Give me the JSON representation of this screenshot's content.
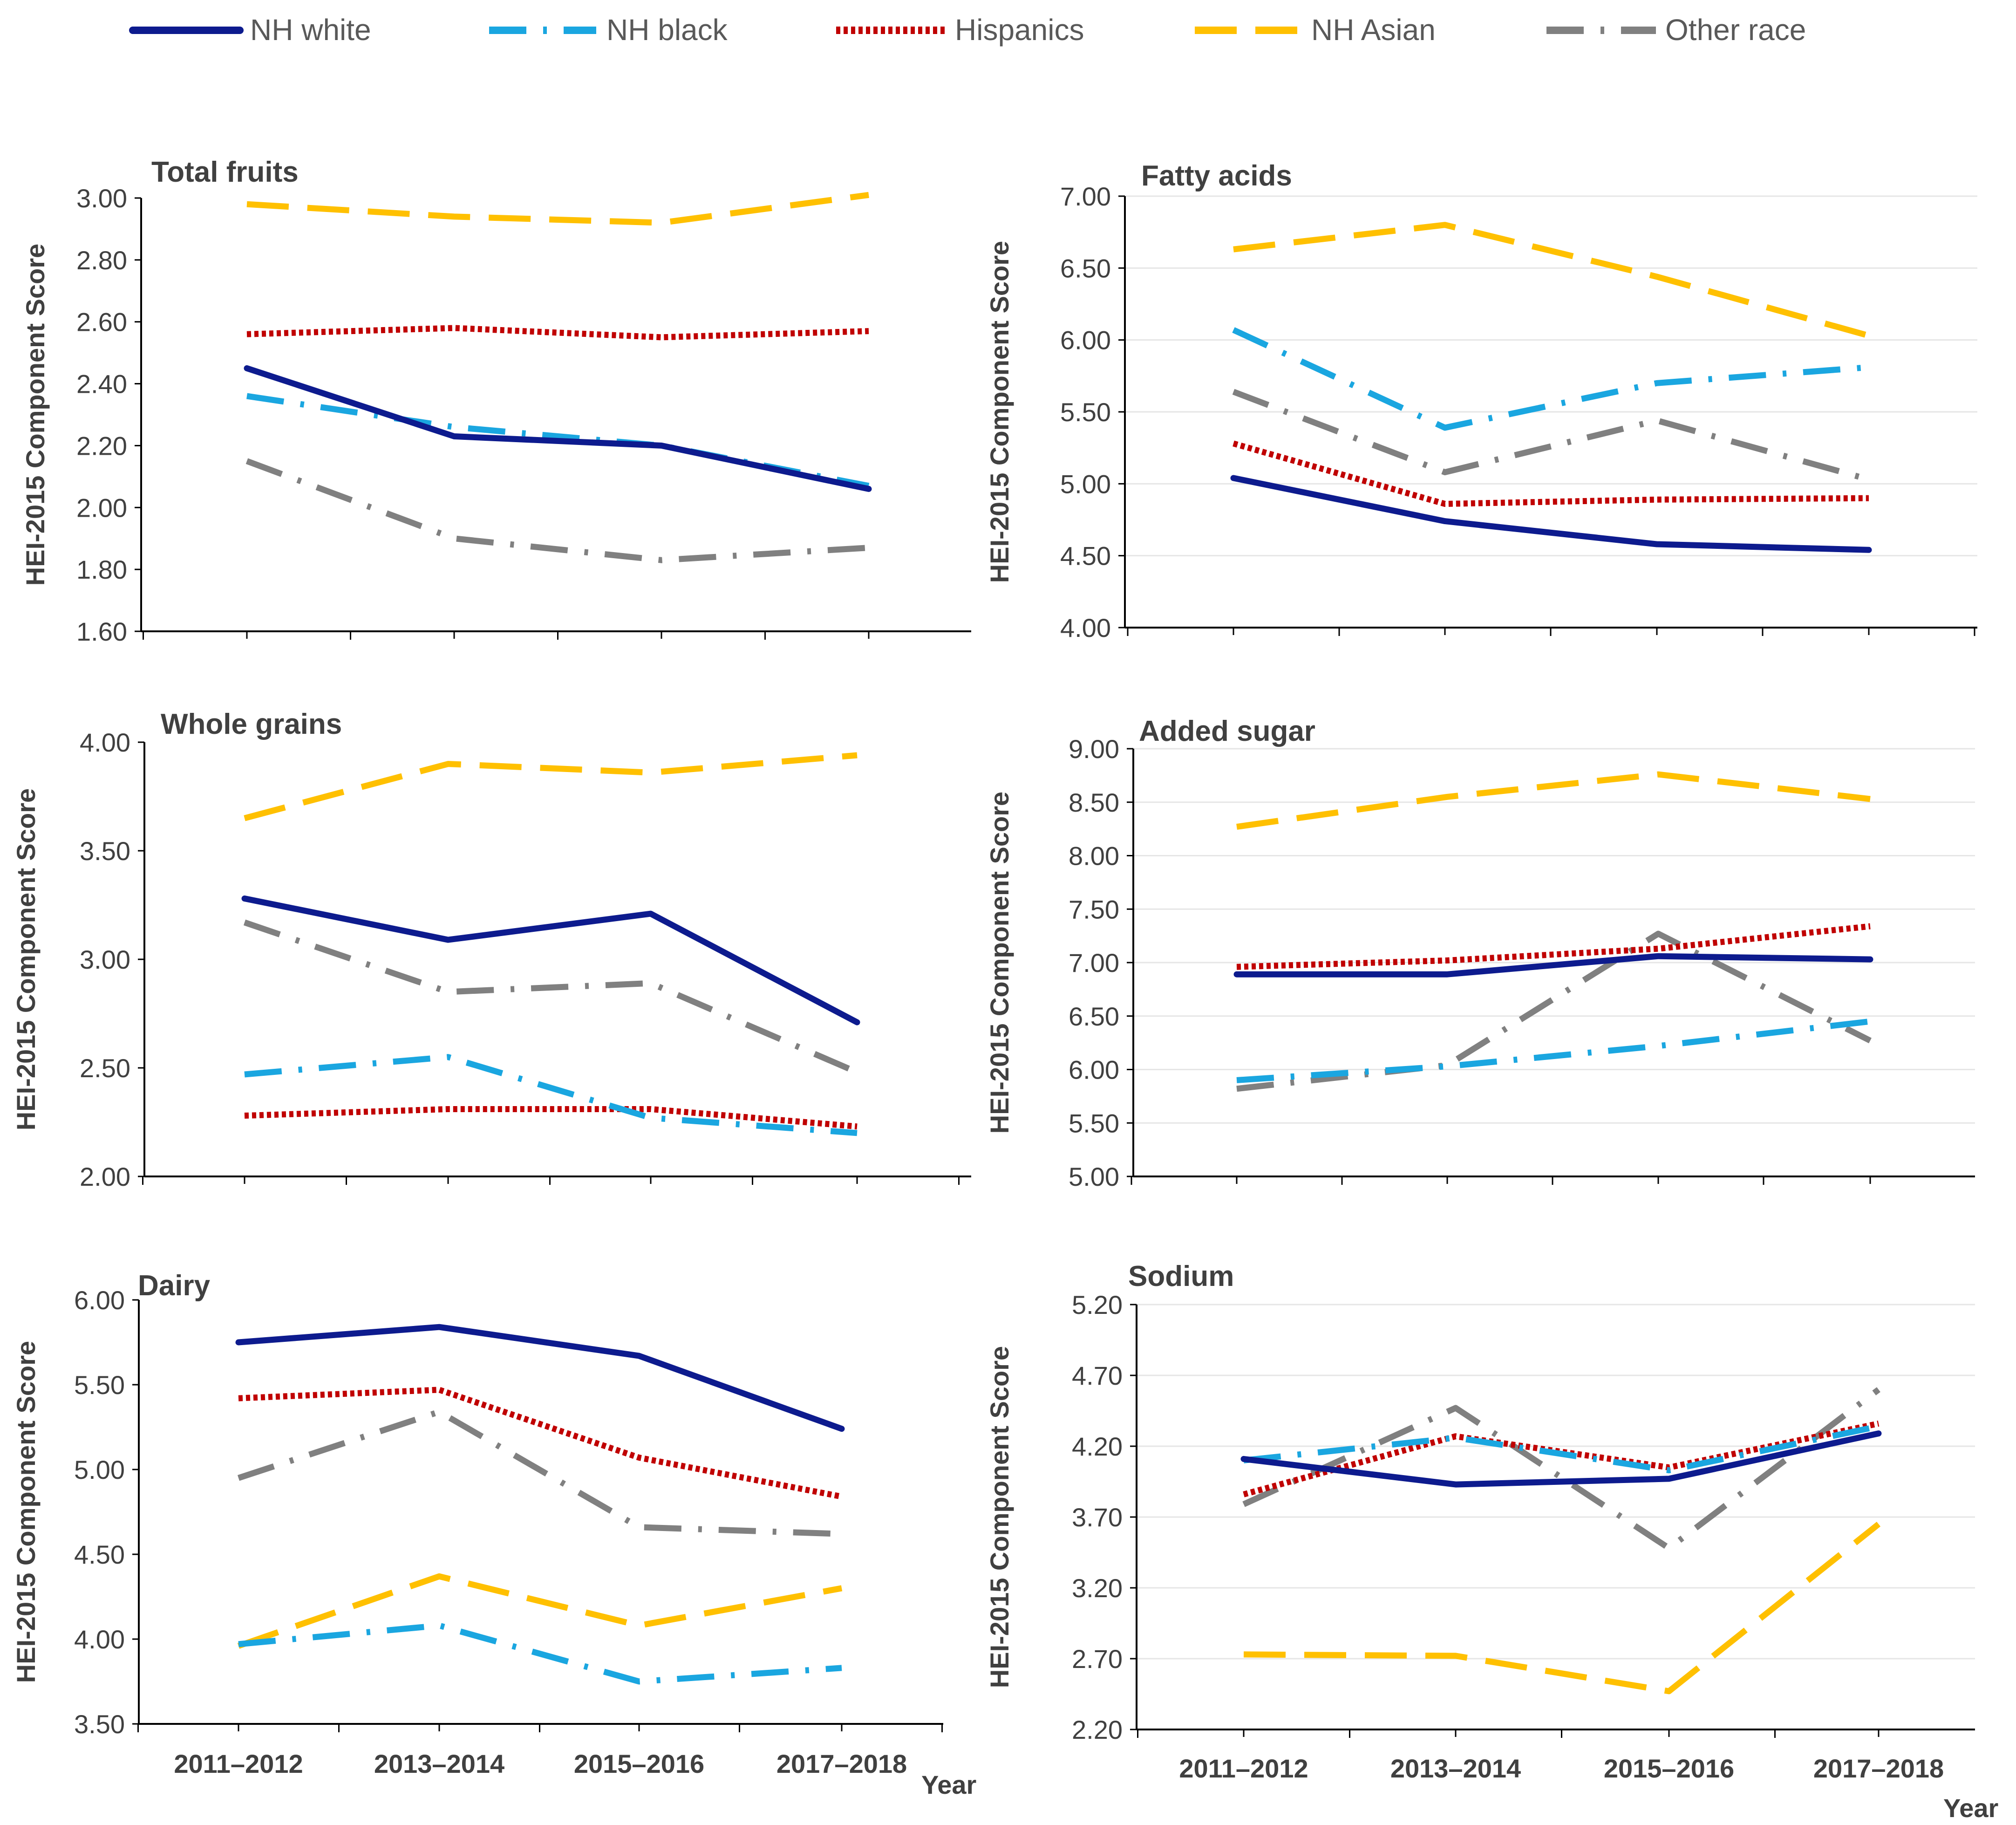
{
  "figure": {
    "categories": [
      "2011–2012",
      "2013—2014",
      "2015–2016",
      "2017–2018"
    ],
    "ylabel": "HEI-2015 Component Score",
    "xlabel": "Year",
    "legend": [
      {
        "key": "nhwhite",
        "label": "NH white",
        "color": "#0d1b8e",
        "style": "solid"
      },
      {
        "key": "nhblack",
        "label": "NH black",
        "color": "#1aa6e0",
        "style": "dashdot"
      },
      {
        "key": "hispanic",
        "label": "Hispanics",
        "color": "#c00000",
        "style": "dotted"
      },
      {
        "key": "nhasian",
        "label": "NH Asian",
        "color": "#ffc000",
        "style": "dashed"
      },
      {
        "key": "other",
        "label": "Other race",
        "color": "#808080",
        "style": "dashdot"
      }
    ]
  },
  "chart_data": [
    {
      "type": "line",
      "title": "Total fruits",
      "ylabel": "HEI-2015 Component Score",
      "ylim": [
        1.6,
        3.0
      ],
      "yticks": [
        "1.60",
        "1.80",
        "2.00",
        "2.20",
        "2.40",
        "2.60",
        "2.80",
        "3.00"
      ],
      "categories": [
        "2011–2012",
        "2013–2014",
        "2015–2016",
        "2017–2018"
      ],
      "series": [
        {
          "name": "NH white",
          "values": [
            2.45,
            2.23,
            2.2,
            2.06
          ]
        },
        {
          "name": "NH black",
          "values": [
            2.36,
            2.26,
            2.2,
            2.07
          ]
        },
        {
          "name": "Hispanics",
          "values": [
            2.56,
            2.58,
            2.55,
            2.57
          ]
        },
        {
          "name": "NH Asian",
          "values": [
            2.98,
            2.94,
            2.92,
            3.01
          ]
        },
        {
          "name": "Other race",
          "values": [
            2.15,
            1.9,
            1.83,
            1.87
          ]
        }
      ]
    },
    {
      "type": "line",
      "title": "Fatty acids",
      "ylabel": "HEI-2015 Component Score",
      "ylim": [
        4.0,
        7.0
      ],
      "yticks": [
        "4.00",
        "4.50",
        "5.00",
        "5.50",
        "6.00",
        "6.50",
        "7.00"
      ],
      "categories": [
        "2011–2012",
        "2013–2014",
        "2015–2016",
        "2017–2018"
      ],
      "series": [
        {
          "name": "NH white",
          "values": [
            5.04,
            4.74,
            4.58,
            4.54
          ]
        },
        {
          "name": "NH black",
          "values": [
            6.07,
            5.39,
            5.7,
            5.81
          ]
        },
        {
          "name": "Hispanics",
          "values": [
            5.28,
            4.86,
            4.89,
            4.9
          ]
        },
        {
          "name": "NH Asian",
          "values": [
            6.63,
            6.8,
            6.44,
            6.03
          ]
        },
        {
          "name": "Other race",
          "values": [
            5.64,
            5.08,
            5.44,
            5.03
          ]
        }
      ]
    },
    {
      "type": "line",
      "title": "Whole grains",
      "ylabel": "HEI-2015 Component Score",
      "ylim": [
        2.0,
        4.0
      ],
      "yticks": [
        "2.00",
        "2.50",
        "3.00",
        "3.50",
        "4.00"
      ],
      "categories": [
        "2011–2012",
        "2013–2014",
        "2015–2016",
        "2017–2018"
      ],
      "series": [
        {
          "name": "NH white",
          "values": [
            3.28,
            3.09,
            3.21,
            2.71
          ]
        },
        {
          "name": "NH black",
          "values": [
            2.47,
            2.55,
            2.27,
            2.2
          ]
        },
        {
          "name": "Hispanics",
          "values": [
            2.28,
            2.31,
            2.31,
            2.23
          ]
        },
        {
          "name": "NH Asian",
          "values": [
            3.65,
            3.9,
            3.86,
            3.94
          ]
        },
        {
          "name": "Other race",
          "values": [
            3.17,
            2.85,
            2.89,
            2.48
          ]
        }
      ]
    },
    {
      "type": "line",
      "title": "Added sugar",
      "ylabel": "HEI-2015 Component Score",
      "ylim": [
        5.0,
        9.0
      ],
      "yticks": [
        "5.00",
        "5.50",
        "6.00",
        "6.50",
        "7.00",
        "7.50",
        "8.00",
        "8.50",
        "9.00"
      ],
      "categories": [
        "2011–2012",
        "2013–2014",
        "2015–2016",
        "2017–2018"
      ],
      "series": [
        {
          "name": "NH white",
          "values": [
            6.89,
            6.89,
            7.06,
            7.03
          ]
        },
        {
          "name": "NH black",
          "values": [
            5.9,
            6.03,
            6.22,
            6.45
          ]
        },
        {
          "name": "Hispanics",
          "values": [
            6.96,
            7.02,
            7.13,
            7.34
          ]
        },
        {
          "name": "NH Asian",
          "values": [
            8.27,
            8.55,
            8.76,
            8.53
          ]
        },
        {
          "name": "Other race",
          "values": [
            5.82,
            6.04,
            7.27,
            6.27
          ]
        }
      ]
    },
    {
      "type": "line",
      "title": "Dairy",
      "ylabel": "HEI-2015 Component Score",
      "ylim": [
        3.5,
        6.0
      ],
      "yticks": [
        "3.50",
        "4.00",
        "4.50",
        "5.00",
        "5.50",
        "6.00"
      ],
      "categories": [
        "2011–2012",
        "2013–2014",
        "2015–2016",
        "2017–2018"
      ],
      "series": [
        {
          "name": "NH white",
          "values": [
            5.75,
            5.84,
            5.67,
            5.24
          ]
        },
        {
          "name": "NH black",
          "values": [
            3.97,
            4.08,
            3.75,
            3.83
          ]
        },
        {
          "name": "Hispanics",
          "values": [
            5.42,
            5.47,
            5.07,
            4.84
          ]
        },
        {
          "name": "NH Asian",
          "values": [
            3.96,
            4.37,
            4.08,
            4.3
          ]
        },
        {
          "name": "Other race",
          "values": [
            4.95,
            5.34,
            4.66,
            4.62
          ]
        }
      ]
    },
    {
      "type": "line",
      "title": "Sodium",
      "ylabel": "HEI-2015 Component Score",
      "xlabel": "Year",
      "ylim": [
        2.2,
        5.2
      ],
      "yticks": [
        "2.20",
        "2.70",
        "3.20",
        "3.70",
        "4.20",
        "4.70",
        "5.20"
      ],
      "categories": [
        "2011–2012",
        "2013–2014",
        "2015–2016",
        "2017–2018"
      ],
      "series": [
        {
          "name": "NH white",
          "values": [
            4.11,
            3.93,
            3.97,
            4.29
          ]
        },
        {
          "name": "NH black",
          "values": [
            4.1,
            4.26,
            4.03,
            4.34
          ]
        },
        {
          "name": "Hispanics",
          "values": [
            3.86,
            4.27,
            4.05,
            4.36
          ]
        },
        {
          "name": "NH Asian",
          "values": [
            2.73,
            2.72,
            2.47,
            3.65
          ]
        },
        {
          "name": "Other race",
          "values": [
            3.79,
            4.47,
            3.48,
            4.6
          ]
        }
      ]
    }
  ]
}
